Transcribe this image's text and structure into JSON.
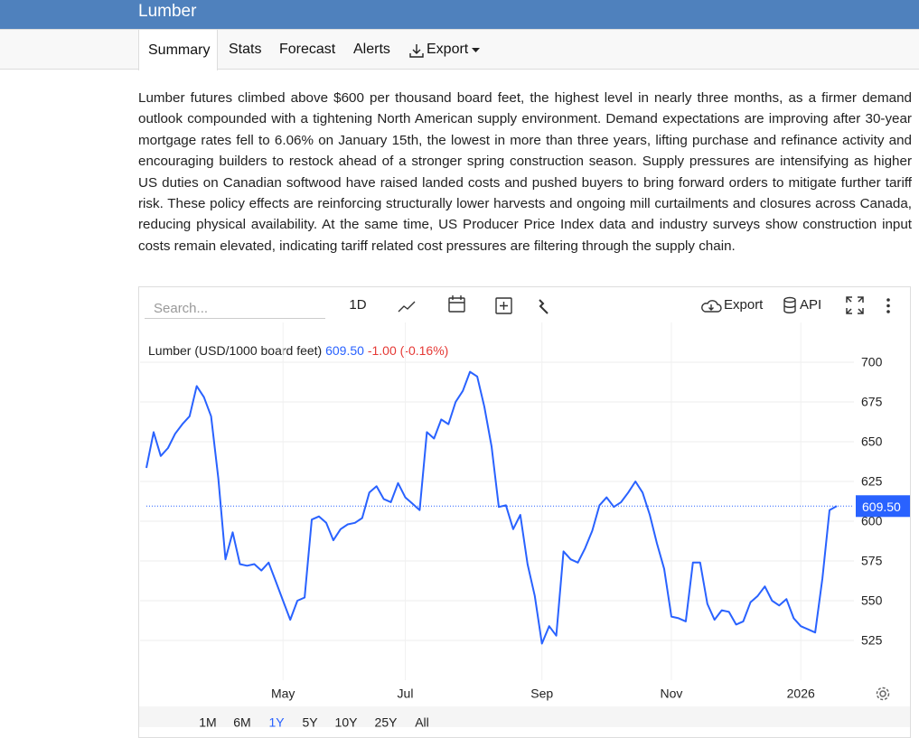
{
  "header": {
    "title": "Lumber"
  },
  "tabs": [
    "Summary",
    "Stats",
    "Forecast",
    "Alerts",
    "Export"
  ],
  "summary": "Lumber futures climbed above $600 per thousand board feet, the highest level in nearly three months, as a firmer demand outlook compounded with a tightening North American supply environment. Demand expectations are improving after 30-year mortgage rates fell to 6.06% on January 15th, the lowest in more than three years, lifting purchase and refinance activity and encouraging builders to restock ahead of a stronger spring construction season. Supply pressures are intensifying as higher US duties on Canadian softwood have raised landed costs and pushed buyers to bring forward orders to mitigate further tariff risk. These policy effects are reinforcing structurally lower harvests and ongoing mill curtailments and closures across Canada, reducing physical availability. At the same time, US Producer Price Index data and industry surveys show construction input costs remain elevated, indicating tariff related cost pressures are filtering through the supply chain.",
  "toolbar": {
    "search_placeholder": "Search...",
    "interval": "1D",
    "export": "Export",
    "api": "API"
  },
  "chart_data": {
    "type": "line",
    "current": {
      "value": 609.5,
      "label": "609.50",
      "change": "-1.00 (-0.16%)"
    },
    "categories": [
      null,
      null,
      null,
      null,
      null,
      null,
      null,
      null,
      null,
      null,
      null,
      null,
      null,
      null,
      null,
      null,
      null,
      null,
      null,
      "May",
      null,
      null,
      null,
      null,
      null,
      null,
      null,
      null,
      null,
      null,
      null,
      null,
      null,
      null,
      null,
      null,
      "Jul",
      null,
      null,
      null,
      null,
      null,
      null,
      null,
      null,
      null,
      null,
      null,
      null,
      null,
      null,
      null,
      null,
      null,
      null,
      "Sep",
      null,
      null,
      null,
      null,
      null,
      null,
      null,
      null,
      null,
      null,
      null,
      null,
      null,
      null,
      null,
      null,
      null,
      "Nov",
      null,
      null,
      null,
      null,
      null,
      null,
      null,
      null,
      null,
      null,
      null,
      null,
      null,
      null,
      null,
      null,
      null,
      "2026",
      null,
      null,
      null,
      null,
      null
    ],
    "series": [
      {
        "name": "Lumber (USD/1000 board feet)",
        "color": "#2962ff",
        "values": [
          633.5,
          656,
          641,
          646,
          655,
          661,
          666,
          685,
          678,
          666,
          627,
          576,
          593,
          573,
          572,
          573,
          569,
          574,
          562,
          550,
          538,
          550,
          552,
          601,
          603,
          599,
          588,
          595,
          598,
          599,
          602,
          618,
          622,
          614,
          612,
          624,
          615,
          611,
          607,
          656,
          652,
          664,
          661,
          675,
          682,
          694,
          691,
          672,
          647,
          609,
          610,
          595,
          604,
          573,
          553,
          523,
          534,
          528,
          581,
          576,
          574,
          583,
          594,
          610,
          615,
          609,
          612,
          618,
          625,
          618,
          604,
          586,
          570,
          540,
          539,
          537,
          574,
          574,
          548,
          538,
          544,
          543,
          535,
          537,
          549,
          553,
          559,
          550,
          547,
          551,
          539,
          534,
          532,
          530,
          564,
          607,
          609.5
        ]
      }
    ],
    "ylim": [
      500,
      725
    ],
    "yticks": [
      525,
      550,
      575,
      600,
      625,
      650,
      675,
      700
    ],
    "grid": true
  },
  "ranges": [
    "1M",
    "6M",
    "1Y",
    "5Y",
    "10Y",
    "25Y",
    "All"
  ]
}
